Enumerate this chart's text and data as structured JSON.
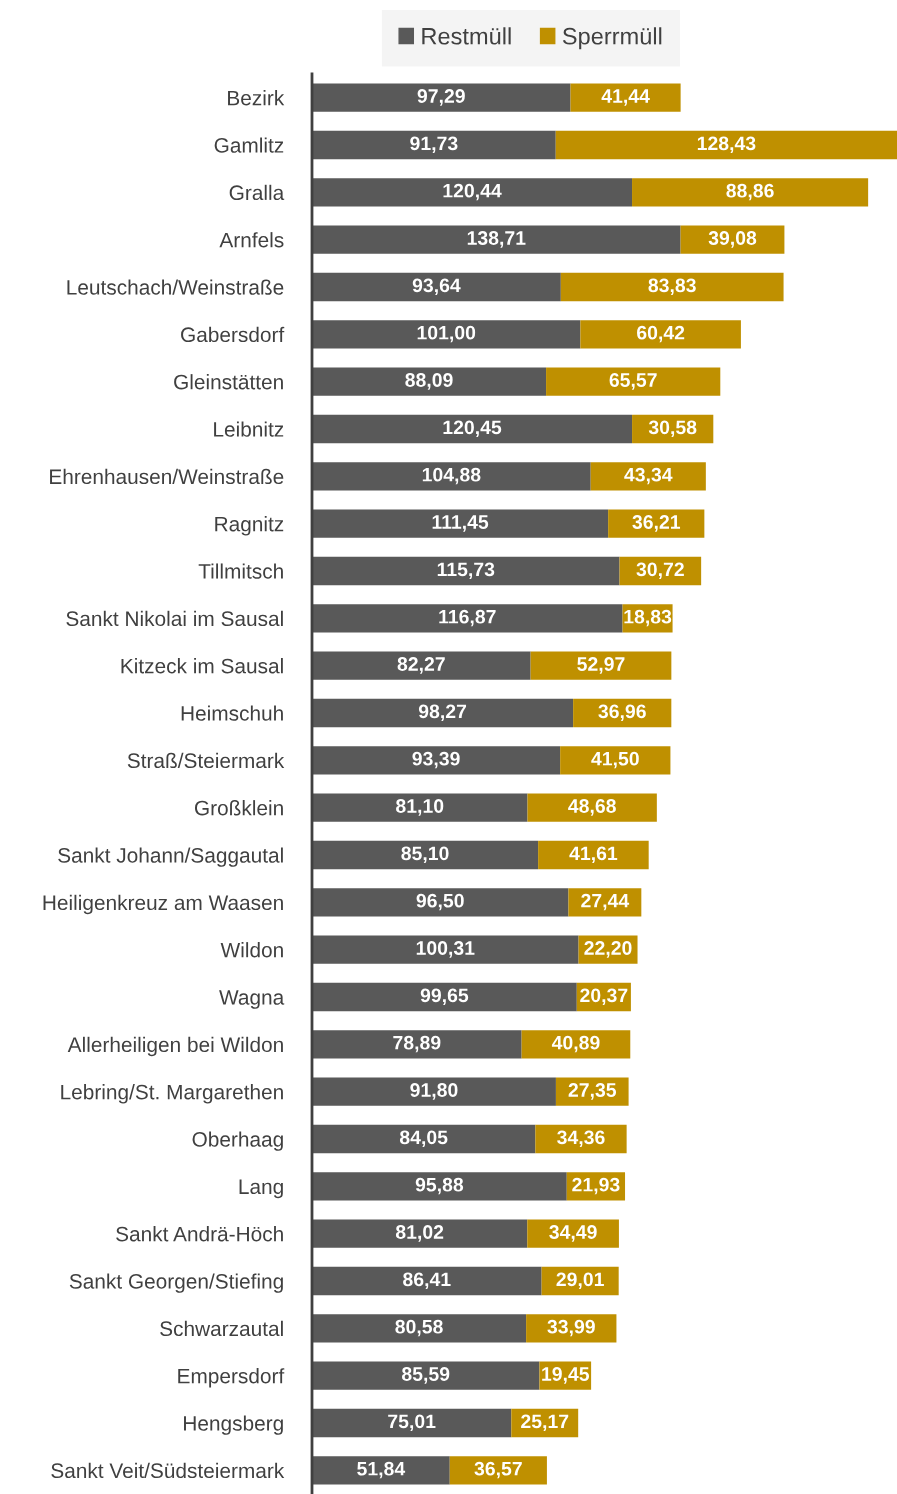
{
  "chart_data": {
    "type": "bar",
    "orientation": "horizontal",
    "stacked": true,
    "legend": "top",
    "grid": false,
    "categories": [
      "Bezirk",
      "Gamlitz",
      "Gralla",
      "Arnfels",
      "Leutschach/Weinstraße",
      "Gabersdorf",
      "Gleinstätten",
      "Leibnitz",
      "Ehrenhausen/Weinstraße",
      "Ragnitz",
      "Tillmitsch",
      "Sankt Nikolai im Sausal",
      "Kitzeck im Sausal",
      "Heimschuh",
      "Straß/Steiermark",
      "Großklein",
      "Sankt Johann/Saggautal",
      "Heiligenkreuz am Waasen",
      "Wildon",
      "Wagna",
      "Allerheiligen bei Wildon",
      "Lebring/St. Margarethen",
      "Oberhaag",
      "Lang",
      "Sankt Andrä-Höch",
      "Sankt Georgen/Stiefing",
      "Schwarzautal",
      "Empersdorf",
      "Hengsberg",
      "Sankt Veit/Südsteiermark"
    ],
    "series": [
      {
        "name": "Restmüll",
        "color": "#595959",
        "values": [
          97.29,
          91.73,
          120.44,
          138.71,
          93.64,
          101.0,
          88.09,
          120.45,
          104.88,
          111.45,
          115.73,
          116.87,
          82.27,
          98.27,
          93.39,
          81.1,
          85.1,
          96.5,
          100.31,
          99.65,
          78.89,
          91.8,
          84.05,
          95.88,
          81.02,
          86.41,
          80.58,
          85.59,
          75.01,
          51.84
        ],
        "value_labels": [
          "97,29",
          "91,73",
          "120,44",
          "138,71",
          "93,64",
          "101,00",
          "88,09",
          "120,45",
          "104,88",
          "111,45",
          "115,73",
          "116,87",
          "82,27",
          "98,27",
          "93,39",
          "81,10",
          "85,10",
          "96,50",
          "100,31",
          "99,65",
          "78,89",
          "91,80",
          "84,05",
          "95,88",
          "81,02",
          "86,41",
          "80,58",
          "85,59",
          "75,01",
          "51,84"
        ]
      },
      {
        "name": "Sperrmüll",
        "color": "#bf9000",
        "values": [
          41.44,
          128.43,
          88.86,
          39.08,
          83.83,
          60.42,
          65.57,
          30.58,
          43.34,
          36.21,
          30.72,
          18.83,
          52.97,
          36.96,
          41.5,
          48.68,
          41.61,
          27.44,
          22.2,
          20.37,
          40.89,
          27.35,
          34.36,
          21.93,
          34.49,
          29.01,
          33.99,
          19.45,
          25.17,
          36.57
        ],
        "value_labels": [
          "41,44",
          "128,43",
          "88,86",
          "39,08",
          "83,83",
          "60,42",
          "65,57",
          "30,58",
          "43,34",
          "36,21",
          "30,72",
          "18,83",
          "52,97",
          "36,96",
          "41,50",
          "48,68",
          "41,61",
          "27,44",
          "22,20",
          "20,37",
          "40,89",
          "27,35",
          "34,36",
          "21,93",
          "34,49",
          "29,01",
          "33,99",
          "19,45",
          "25,17",
          "36,57"
        ]
      }
    ]
  }
}
